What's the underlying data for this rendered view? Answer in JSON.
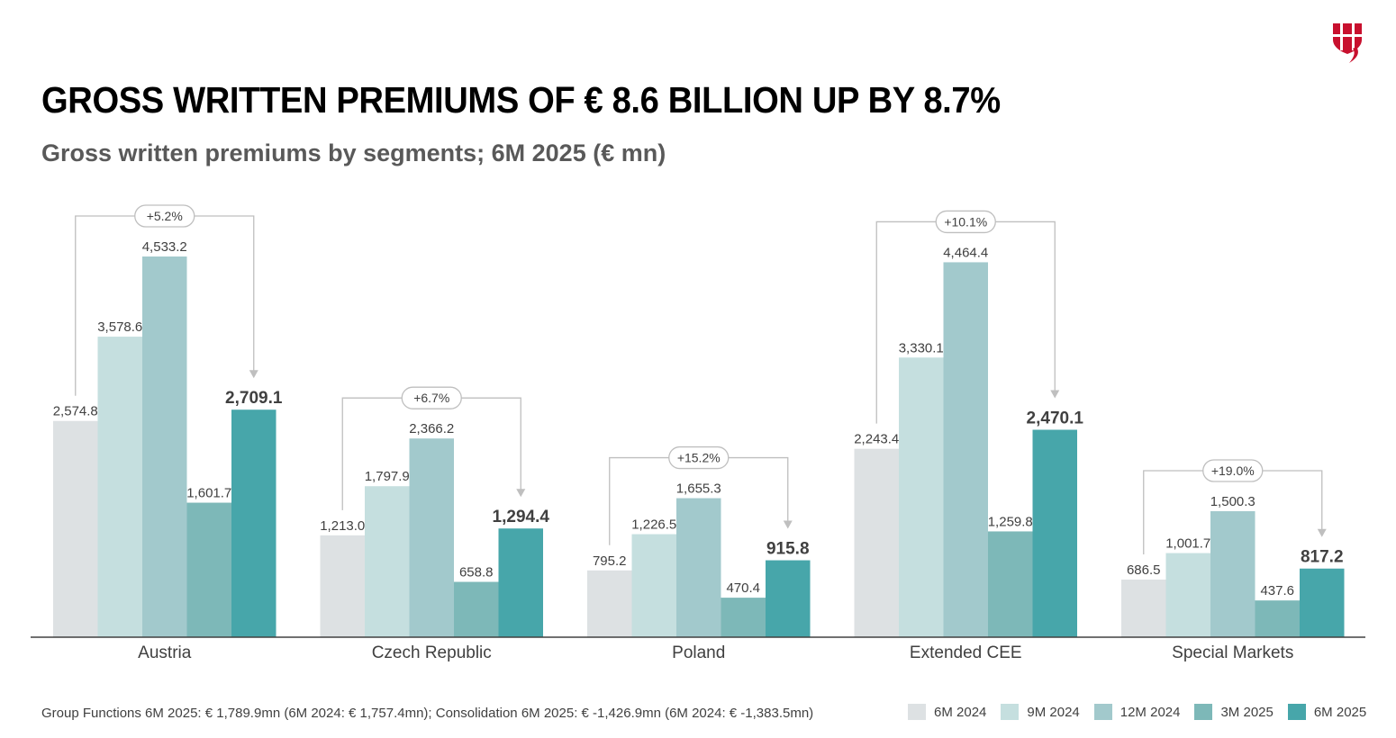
{
  "title": "GROSS WRITTEN PREMIUMS OF € 8.6 BILLION UP BY 8.7%",
  "subtitle": "Gross written premiums by segments; 6M 2025 (€ mn)",
  "footnote": "Group Functions 6M 2025: € 1,789.9mn (6M 2024: € 1,757.4mn); Consolidation 6M 2025: € -1,426.9mn (6M 2024: € -1,383.5mn)",
  "logo_icon": "shield-logo-icon",
  "colors": {
    "6M 2024": "#dde1e3",
    "9M 2024": "#c5dfdf",
    "12M 2024": "#a2c9cc",
    "3M 2025": "#7db8b8",
    "6M 2025": "#47a6aa",
    "axis": "#404040",
    "bracket": "#bfbfbf",
    "label": "#404040",
    "bold_label": "#404040"
  },
  "chart_data": {
    "type": "bar",
    "categories": [
      "Austria",
      "Czech Republic",
      "Poland",
      "Extended CEE",
      "Special Markets"
    ],
    "series": [
      {
        "name": "6M 2024",
        "values": [
          2574.8,
          1213.0,
          795.2,
          2243.4,
          686.5
        ],
        "labels": [
          "2,574.8",
          "1,213.0",
          "795.2",
          "2,243.4",
          "686.5"
        ]
      },
      {
        "name": "9M 2024",
        "values": [
          3578.6,
          1797.9,
          1226.5,
          3330.1,
          1001.7
        ],
        "labels": [
          "3,578.6",
          "1,797.9",
          "1,226.5",
          "3,330.1",
          "1,001.7"
        ]
      },
      {
        "name": "12M 2024",
        "values": [
          4533.2,
          2366.2,
          1655.3,
          4464.4,
          1500.3
        ],
        "labels": [
          "4,533.2",
          "2,366.2",
          "1,655.3",
          "4,464.4",
          "1,500.3"
        ]
      },
      {
        "name": "3M 2025",
        "values": [
          1601.7,
          658.8,
          470.4,
          1259.8,
          437.6
        ],
        "labels": [
          "1,601.7",
          "658.8",
          "470.4",
          "1,259.8",
          "437.6"
        ]
      },
      {
        "name": "6M 2025",
        "values": [
          2709.1,
          1294.4,
          915.8,
          2470.1,
          817.2
        ],
        "labels": [
          "2,709.1",
          "1,294.4",
          "915.8",
          "2,470.1",
          "817.2"
        ]
      }
    ],
    "growth": [
      "+5.2%",
      "+6.7%",
      "+15.2%",
      "+10.1%",
      "+19.0%"
    ],
    "ylim": [
      0,
      4533.2
    ],
    "grid": false,
    "legend_position": "bottom-right"
  }
}
